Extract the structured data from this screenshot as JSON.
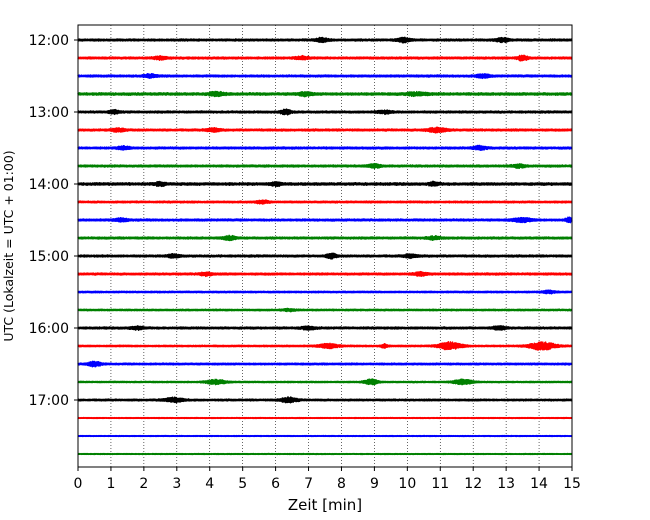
{
  "chart_data": {
    "type": "line",
    "title": "",
    "xlabel": "Zeit  [min]",
    "ylabel": "UTC (Lokalzeit = UTC + 01:00)",
    "xlim": [
      0,
      15
    ],
    "x_ticks": [
      "0",
      "1",
      "2",
      "3",
      "4",
      "5",
      "6",
      "7",
      "8",
      "9",
      "10",
      "11",
      "12",
      "13",
      "14",
      "15"
    ],
    "y_ticks": [
      "12:00",
      "13:00",
      "14:00",
      "15:00",
      "16:00",
      "17:00"
    ],
    "grid": "vertical-dotted",
    "color_cycle": [
      "#000000",
      "#ff0000",
      "#0000ff",
      "#008000"
    ],
    "trace_interval_minutes": 15,
    "traces": [
      {
        "start": "12:00",
        "color": "#000000",
        "amp": 0.8,
        "bursts": [
          {
            "x": 7.4,
            "a": 1.8,
            "w": 0.2
          },
          {
            "x": 9.9,
            "a": 2.0,
            "w": 0.2
          },
          {
            "x": 12.9,
            "a": 1.8,
            "w": 0.2
          }
        ]
      },
      {
        "start": "12:15",
        "color": "#ff0000",
        "amp": 0.8,
        "bursts": [
          {
            "x": 2.5,
            "a": 1.3,
            "w": 0.2
          },
          {
            "x": 6.8,
            "a": 1.4,
            "w": 0.2
          },
          {
            "x": 13.5,
            "a": 2.4,
            "w": 0.15
          }
        ]
      },
      {
        "start": "12:30",
        "color": "#0000ff",
        "amp": 0.8,
        "bursts": [
          {
            "x": 2.2,
            "a": 1.6,
            "w": 0.2
          },
          {
            "x": 12.3,
            "a": 1.6,
            "w": 0.2
          }
        ]
      },
      {
        "start": "12:45",
        "color": "#008000",
        "amp": 1.0,
        "bursts": [
          {
            "x": 4.2,
            "a": 1.6,
            "w": 0.25
          },
          {
            "x": 6.9,
            "a": 1.6,
            "w": 0.2
          },
          {
            "x": 10.3,
            "a": 1.4,
            "w": 0.3
          }
        ]
      },
      {
        "start": "13:00",
        "color": "#000000",
        "amp": 0.8,
        "bursts": [
          {
            "x": 1.1,
            "a": 1.8,
            "w": 0.15
          },
          {
            "x": 6.3,
            "a": 2.4,
            "w": 0.15
          },
          {
            "x": 9.3,
            "a": 1.4,
            "w": 0.2
          }
        ]
      },
      {
        "start": "13:15",
        "color": "#ff0000",
        "amp": 0.8,
        "bursts": [
          {
            "x": 1.2,
            "a": 1.6,
            "w": 0.2
          },
          {
            "x": 4.1,
            "a": 1.6,
            "w": 0.2
          },
          {
            "x": 10.9,
            "a": 2.0,
            "w": 0.3
          }
        ]
      },
      {
        "start": "13:30",
        "color": "#0000ff",
        "amp": 0.8,
        "bursts": [
          {
            "x": 1.4,
            "a": 1.4,
            "w": 0.2
          },
          {
            "x": 12.2,
            "a": 1.6,
            "w": 0.2
          }
        ]
      },
      {
        "start": "13:45",
        "color": "#008000",
        "amp": 0.8,
        "bursts": [
          {
            "x": 9.0,
            "a": 1.6,
            "w": 0.2
          },
          {
            "x": 13.4,
            "a": 1.4,
            "w": 0.2
          }
        ]
      },
      {
        "start": "14:00",
        "color": "#000000",
        "amp": 1.0,
        "bursts": [
          {
            "x": 2.5,
            "a": 1.8,
            "w": 0.15
          },
          {
            "x": 6.0,
            "a": 1.8,
            "w": 0.15
          },
          {
            "x": 10.8,
            "a": 1.6,
            "w": 0.15
          }
        ]
      },
      {
        "start": "14:15",
        "color": "#ff0000",
        "amp": 0.7,
        "bursts": [
          {
            "x": 5.6,
            "a": 1.4,
            "w": 0.2
          }
        ]
      },
      {
        "start": "14:30",
        "color": "#0000ff",
        "amp": 0.8,
        "bursts": [
          {
            "x": 1.3,
            "a": 1.4,
            "w": 0.2
          },
          {
            "x": 13.5,
            "a": 1.8,
            "w": 0.3
          },
          {
            "x": 14.9,
            "a": 2.2,
            "w": 0.1
          }
        ]
      },
      {
        "start": "14:45",
        "color": "#008000",
        "amp": 0.8,
        "bursts": [
          {
            "x": 4.6,
            "a": 1.8,
            "w": 0.2
          },
          {
            "x": 10.8,
            "a": 1.4,
            "w": 0.2
          }
        ]
      },
      {
        "start": "15:00",
        "color": "#000000",
        "amp": 0.8,
        "bursts": [
          {
            "x": 2.9,
            "a": 1.4,
            "w": 0.2
          },
          {
            "x": 7.7,
            "a": 2.2,
            "w": 0.15
          },
          {
            "x": 10.1,
            "a": 1.6,
            "w": 0.2
          }
        ]
      },
      {
        "start": "15:15",
        "color": "#ff0000",
        "amp": 0.8,
        "bursts": [
          {
            "x": 3.9,
            "a": 1.4,
            "w": 0.2
          },
          {
            "x": 10.4,
            "a": 1.6,
            "w": 0.2
          }
        ]
      },
      {
        "start": "15:30",
        "color": "#0000ff",
        "amp": 0.6,
        "bursts": [
          {
            "x": 14.3,
            "a": 1.2,
            "w": 0.2
          }
        ]
      },
      {
        "start": "15:45",
        "color": "#008000",
        "amp": 0.6,
        "bursts": [
          {
            "x": 6.4,
            "a": 1.0,
            "w": 0.2
          }
        ]
      },
      {
        "start": "16:00",
        "color": "#000000",
        "amp": 0.8,
        "bursts": [
          {
            "x": 1.8,
            "a": 1.4,
            "w": 0.2
          },
          {
            "x": 7.0,
            "a": 1.6,
            "w": 0.2
          },
          {
            "x": 12.8,
            "a": 1.6,
            "w": 0.2
          }
        ]
      },
      {
        "start": "16:15",
        "color": "#ff0000",
        "amp": 0.6,
        "bursts": [
          {
            "x": 7.6,
            "a": 2.0,
            "w": 0.3
          },
          {
            "x": 9.3,
            "a": 1.6,
            "w": 0.1
          },
          {
            "x": 11.3,
            "a": 3.5,
            "w": 0.35
          },
          {
            "x": 14.1,
            "a": 3.6,
            "w": 0.4
          }
        ]
      },
      {
        "start": "16:30",
        "color": "#0000ff",
        "amp": 0.7,
        "bursts": [
          {
            "x": 0.5,
            "a": 2.2,
            "w": 0.2
          }
        ]
      },
      {
        "start": "16:45",
        "color": "#008000",
        "amp": 0.5,
        "bursts": [
          {
            "x": 4.2,
            "a": 2.2,
            "w": 0.3
          },
          {
            "x": 8.9,
            "a": 2.6,
            "w": 0.2
          },
          {
            "x": 11.7,
            "a": 2.2,
            "w": 0.3
          }
        ]
      },
      {
        "start": "17:00",
        "color": "#000000",
        "amp": 0.7,
        "bursts": [
          {
            "x": 2.9,
            "a": 2.0,
            "w": 0.3
          },
          {
            "x": 6.4,
            "a": 2.4,
            "w": 0.25
          }
        ]
      },
      {
        "start": "17:15",
        "color": "#ff0000",
        "amp": 0.3,
        "bursts": []
      },
      {
        "start": "17:30",
        "color": "#0000ff",
        "amp": 0.3,
        "bursts": []
      },
      {
        "start": "17:45",
        "color": "#008000",
        "amp": 0.3,
        "bursts": []
      }
    ]
  }
}
